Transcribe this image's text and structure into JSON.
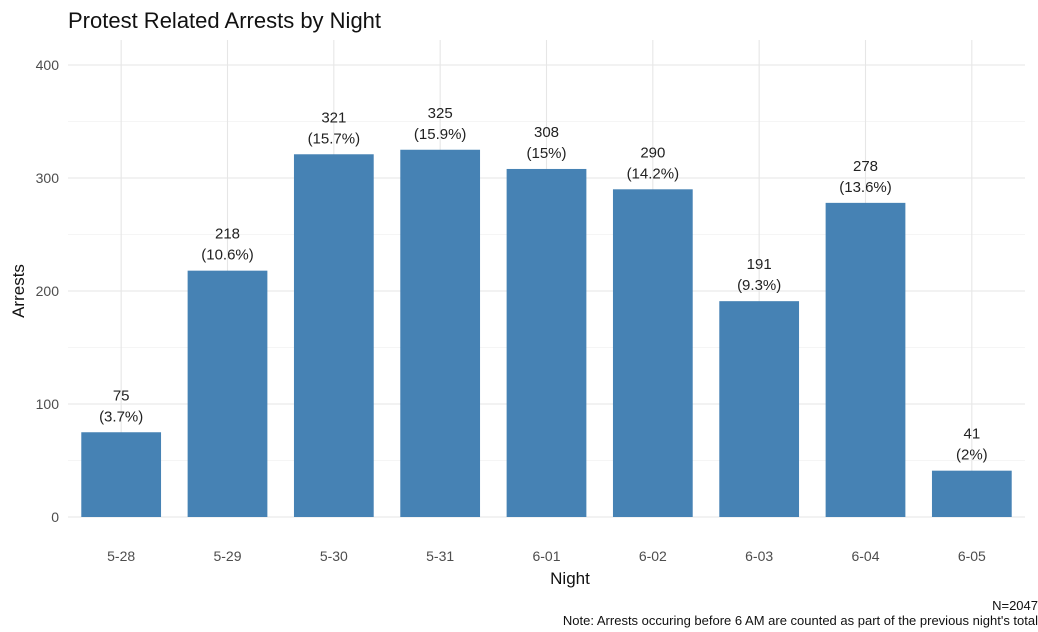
{
  "chart_data": {
    "type": "bar",
    "title": "Protest Related Arrests by Night",
    "xlabel": "Night",
    "ylabel": "Arrests",
    "categories": [
      "5-28",
      "5-29",
      "5-30",
      "5-31",
      "6-01",
      "6-02",
      "6-03",
      "6-04",
      "6-05"
    ],
    "values": [
      75,
      218,
      321,
      325,
      308,
      290,
      191,
      278,
      41
    ],
    "percent_labels": [
      "(3.7%)",
      "(10.6%)",
      "(15.7%)",
      "(15.9%)",
      "(15%)",
      "(14.2%)",
      "(9.3%)",
      "(13.6%)",
      "(2%)"
    ],
    "ylim": [
      0,
      400
    ],
    "yticks": [
      0,
      100,
      200,
      300,
      400
    ],
    "grid": true,
    "bar_color": "#4682B4",
    "caption": {
      "line1": "N=2047",
      "line2": "Note: Arrests occuring before 6 AM are counted as part of the previous night's total"
    }
  }
}
